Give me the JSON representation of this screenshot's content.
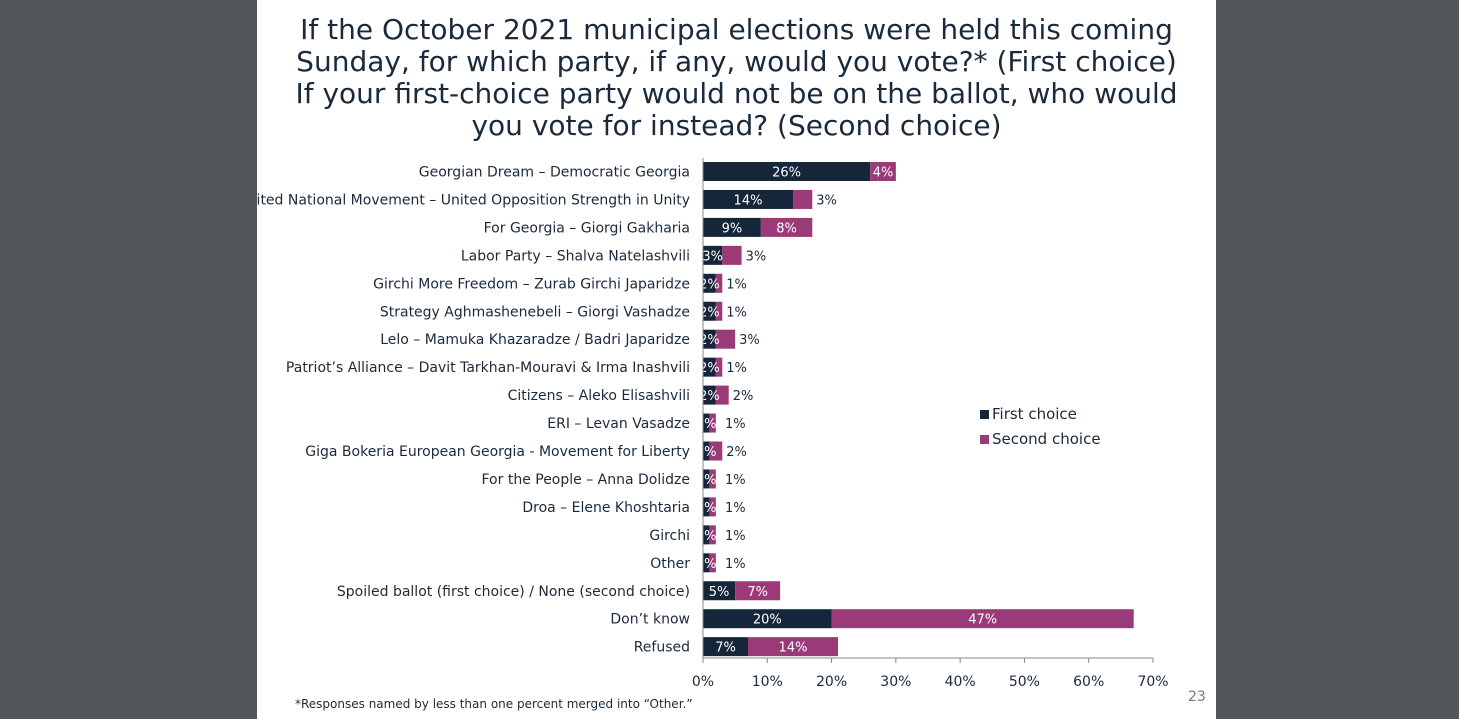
{
  "title_lines": [
    "If the October 2021 municipal elections were held this coming",
    "Sunday, for which party, if any, would you vote?* (First choice)",
    "If your first-choice party would not be on the ballot, who would",
    "you vote for instead? (Second choice)"
  ],
  "footnote": "*Responses named by less than one percent merged into “Other.”",
  "page_number": "23",
  "colors": {
    "first": "#16263a",
    "second": "#9b3a78",
    "axis": "#888888"
  },
  "chart_data": {
    "type": "bar",
    "orientation": "horizontal",
    "stacked": true,
    "categories": [
      "Georgian Dream – Democratic Georgia",
      "United National Movement – United Opposition Strength in Unity",
      "For Georgia – Giorgi Gakharia",
      "Labor Party – Shalva Natelashvili",
      "Girchi More Freedom – Zurab Girchi Japaridze",
      "Strategy Aghmashenebeli – Giorgi Vashadze",
      "Lelo – Mamuka Khazaradze / Badri Japaridze",
      "Patriot’s Alliance – Davit Tarkhan-Mouravi & Irma Inashvili",
      "Citizens – Aleko Elisashvili",
      "ERI – Levan Vasadze",
      "Giga Bokeria European Georgia - Movement for Liberty",
      "For the People – Anna Dolidze",
      "Droa – Elene Khoshtaria",
      "Girchi",
      "Other",
      "Spoiled ballot (first choice) / None (second choice)",
      "Don’t know",
      "Refused"
    ],
    "series": [
      {
        "name": "First choice",
        "values": [
          26,
          14,
          9,
          3,
          2,
          2,
          2,
          2,
          2,
          1,
          1,
          1,
          1,
          1,
          1,
          5,
          20,
          7
        ],
        "labels": [
          "26%",
          "14%",
          "9%",
          "3%",
          "2%",
          "2%",
          "2%",
          "2%",
          "2%",
          "1%",
          "1%",
          "1%",
          "1%",
          "1%",
          "1%",
          "5%",
          "20%",
          "7%"
        ]
      },
      {
        "name": "Second choice",
        "values": [
          4,
          3,
          8,
          3,
          1,
          1,
          3,
          1,
          2,
          1,
          2,
          1,
          1,
          1,
          1,
          7,
          47,
          14
        ],
        "labels": [
          "4%",
          "3%",
          "8%",
          "3%",
          "1%",
          "1%",
          "3%",
          "1%",
          "2%",
          "1%",
          "2%",
          "1%",
          "1%",
          "1%",
          "1%",
          "7%",
          "47%",
          "14%"
        ]
      }
    ],
    "xlim": [
      0,
      70
    ],
    "xticks": [
      "0%",
      "10%",
      "20%",
      "30%",
      "40%",
      "50%",
      "60%",
      "70%"
    ],
    "legend_position": "right",
    "grid": false
  }
}
